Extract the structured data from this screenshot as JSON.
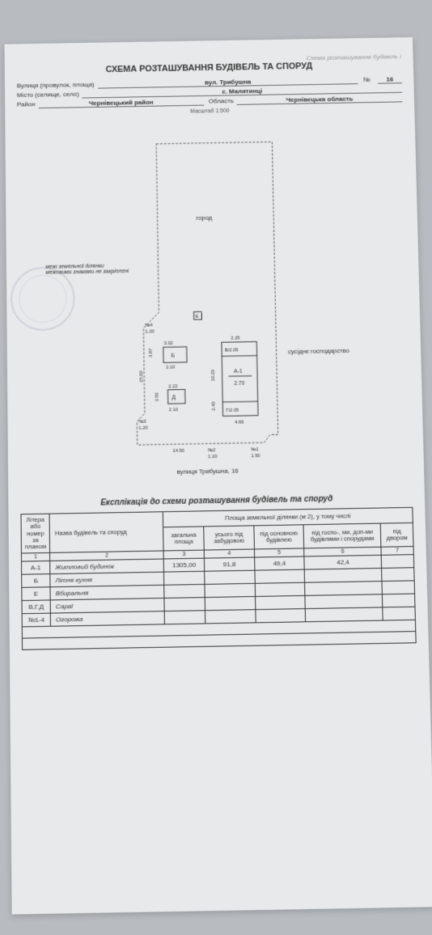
{
  "watermark": "Схема розташування будівель і",
  "title": "СХЕМА РОЗТАШУВАННЯ БУДІВЕЛЬ ТА СПОРУД",
  "form": {
    "street_label": "Вулиця (провулок, площа)",
    "street": "вул. Трибушна",
    "num_label": "№",
    "num": "16",
    "town_label": "Місто (селище, село)",
    "town": "с. Малятинці",
    "district_label": "Район",
    "district": "Чернівецький район",
    "region_label": "Область",
    "region": "Чернівецька область",
    "scale": "Масштаб 1:500"
  },
  "diagram": {
    "note": "межі земельної ділянки межовими знаками не закріплені",
    "garden": "город",
    "neighbor": "сусіднє господарство",
    "street_caption": "вулиця Трибушна, 16",
    "b_b": "Б",
    "b_e": "Е",
    "b_d": "Д",
    "b_v": "В/2.05",
    "b_g": "Г/2.05",
    "a1": "А-1",
    "a1_h": "2.70",
    "dims": {
      "d302": "3.02",
      "d387": "3.87",
      "d210a": "2.10",
      "d210b": "2.10",
      "d222": "2.22",
      "d350": "3.50",
      "d2500": "25.00",
      "d225": "2.25",
      "d240": "2.40",
      "d1029": "10.29",
      "d466": "4.66",
      "d1450": "14.50",
      "n1": "№1",
      "n2": "№2",
      "n3": "№3",
      "n4": "№4",
      "g120a": "1.20",
      "g120b": "1.20",
      "g150": "1.50"
    }
  },
  "explication": {
    "title": "Експлікація до схеми розташування будівель та споруд",
    "headers": {
      "col1": "Літера або номер за планом",
      "col2": "Назва будівель та споруд",
      "group": "Площа земельної ділянки (м 2), у тому числі",
      "c3": "загальна площа",
      "c4": "усього під забудовою",
      "c5": "під основною будівлею",
      "c6": "під госпо-, ми, доп-ми будівлями і спорудами",
      "c7": "під двором"
    },
    "idx": [
      "1",
      "2",
      "3",
      "4",
      "5",
      "6",
      "7"
    ],
    "rows": [
      {
        "id": "А-1",
        "name": "Житловий будинок",
        "v3": "1305,00",
        "v4": "91,8",
        "v5": "49,4",
        "v6": "42,4",
        "v7": ""
      },
      {
        "id": "Б",
        "name": "Літня кухня",
        "v3": "",
        "v4": "",
        "v5": "",
        "v6": "",
        "v7": ""
      },
      {
        "id": "Е",
        "name": "Вбиральня",
        "v3": "",
        "v4": "",
        "v5": "",
        "v6": "",
        "v7": ""
      },
      {
        "id": "В,Г,Д",
        "name": "Сараї",
        "v3": "",
        "v4": "",
        "v5": "",
        "v6": "",
        "v7": ""
      },
      {
        "id": "№1-4",
        "name": "Огорожа",
        "v3": "",
        "v4": "",
        "v5": "",
        "v6": "",
        "v7": ""
      }
    ]
  }
}
